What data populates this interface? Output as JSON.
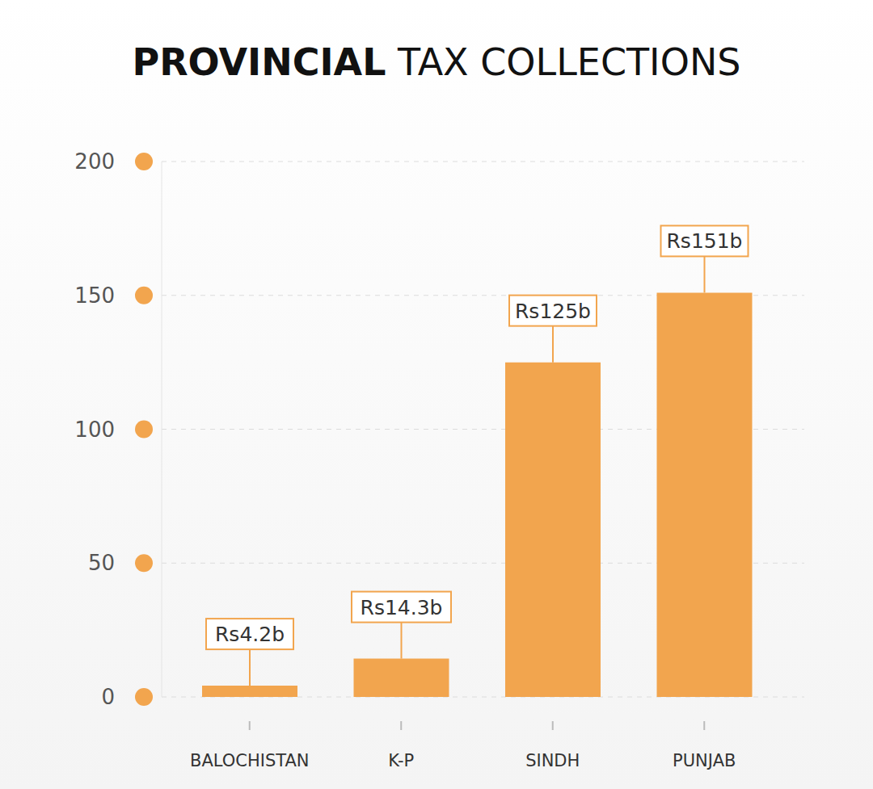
{
  "chart_data": {
    "type": "bar",
    "title": "PROVINCIAL TAX COLLECTIONS",
    "categories": [
      "BALOCHISTAN",
      "K-P",
      "SINDH",
      "PUNJAB"
    ],
    "values": [
      4.2,
      14.3,
      125,
      151
    ],
    "value_labels": [
      "Rs4.2b",
      "Rs14.3b",
      "Rs125b",
      "Rs151b"
    ],
    "color": "#f2a54e",
    "ylim": [
      0,
      200
    ],
    "yticks": [
      0,
      50,
      100,
      150,
      200
    ],
    "grid": true,
    "data_labels": true
  }
}
